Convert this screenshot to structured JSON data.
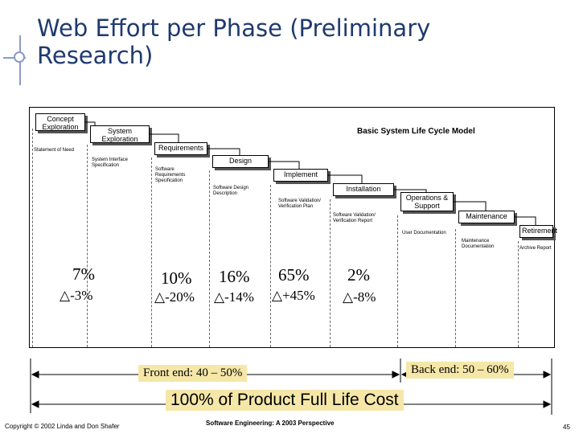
{
  "slide": {
    "title": "Web Effort per Phase (Preliminary Research)"
  },
  "diagram": {
    "title": "Basic System Life Cycle Model",
    "phases": [
      {
        "label": "Concept Exploration"
      },
      {
        "label": "System Exploration"
      },
      {
        "label": "Requirements"
      },
      {
        "label": "Design"
      },
      {
        "label": "Implement"
      },
      {
        "label": "Installation"
      },
      {
        "label": "Operations & Support"
      },
      {
        "label": "Maintenance"
      },
      {
        "label": "Retirement"
      }
    ],
    "documents": [
      {
        "label": "Statement of Need"
      },
      {
        "label": "System Interface Specification"
      },
      {
        "label": "Software Requirements Specification"
      },
      {
        "label": "Software Design Description"
      },
      {
        "label": "Software Validation/ Verification Plan"
      },
      {
        "label": "Software Validation/ Verification Report"
      },
      {
        "label": "User Documentation"
      },
      {
        "label": "Maintenance Documentation"
      },
      {
        "label": "Archive Report"
      }
    ]
  },
  "effort": [
    {
      "percent": "7%",
      "delta": "-3%"
    },
    {
      "percent": "10%",
      "delta": "-20%"
    },
    {
      "percent": "16%",
      "delta": "-14%"
    },
    {
      "percent": "65%",
      "delta": "+45%"
    },
    {
      "percent": "2%",
      "delta": "-8%"
    }
  ],
  "delta_symbol": "△",
  "spans": {
    "front_end": "Front end: 40 – 50%",
    "back_end": "Back end: 50 – 60%",
    "full_life": "100% of Product Full Life Cost"
  },
  "footer": {
    "copyright": "Copyright © 2002 Linda and Don Shafer",
    "book": "Software Engineering: A 2003 Perspective",
    "page": "45"
  }
}
